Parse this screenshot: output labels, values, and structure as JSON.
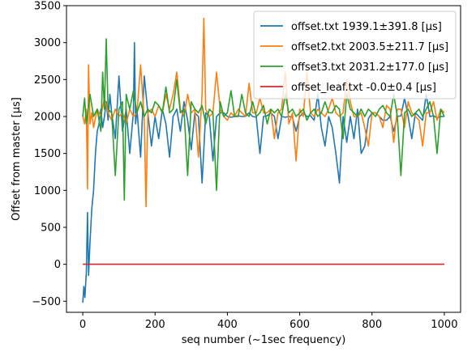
{
  "chart_data": {
    "type": "line",
    "xlabel": "seq number (~1sec frequency)",
    "ylabel": "Offset from master [μs]",
    "xlim": [
      -45,
      1045
    ],
    "ylim": [
      -650,
      3500
    ],
    "xticks": [
      0,
      200,
      400,
      600,
      800,
      1000
    ],
    "yticks": [
      -500,
      0,
      500,
      1000,
      1500,
      2000,
      2500,
      3000,
      3500
    ],
    "xtick_labels": [
      "0",
      "200",
      "400",
      "600",
      "800",
      "1000"
    ],
    "ytick_labels": [
      "−500",
      "0",
      "500",
      "1000",
      "1500",
      "2000",
      "2500",
      "3000",
      "3500"
    ],
    "grid": false,
    "legend_position": "top-right",
    "series": [
      {
        "name": "offset.txt 1939.1±391.8 [μs]",
        "color": "#1f77b4",
        "x": [
          0,
          3,
          6,
          10,
          13,
          16,
          20,
          25,
          30,
          35,
          40,
          45,
          50,
          55,
          60,
          65,
          70,
          75,
          80,
          90,
          100,
          110,
          120,
          130,
          140,
          143,
          146,
          150,
          160,
          170,
          180,
          190,
          200,
          210,
          220,
          230,
          240,
          250,
          260,
          270,
          280,
          290,
          300,
          310,
          320,
          330,
          340,
          350,
          360,
          370,
          380,
          390,
          400,
          410,
          420,
          430,
          440,
          450,
          460,
          470,
          480,
          490,
          500,
          510,
          520,
          530,
          540,
          550,
          560,
          570,
          580,
          590,
          595,
          600,
          610,
          620,
          630,
          640,
          650,
          660,
          670,
          680,
          690,
          700,
          710,
          720,
          730,
          740,
          750,
          760,
          770,
          780,
          790,
          800,
          810,
          820,
          830,
          840,
          850,
          860,
          870,
          880,
          890,
          900,
          910,
          920,
          930,
          940,
          950,
          960,
          970,
          980,
          990,
          1000
        ],
        "y": [
          -520,
          -300,
          -450,
          -100,
          700,
          -150,
          300,
          750,
          1000,
          1500,
          1800,
          1900,
          2100,
          1850,
          2000,
          2200,
          1950,
          2300,
          2050,
          1700,
          2550,
          1800,
          2100,
          1500,
          2050,
          3000,
          1900,
          2100,
          1450,
          2550,
          2050,
          1600,
          2000,
          1700,
          2100,
          1900,
          1450,
          2000,
          2100,
          1800,
          2200,
          1950,
          1550,
          2050,
          2000,
          1100,
          2050,
          2000,
          1400,
          2000,
          2050,
          2050,
          2000,
          1990,
          2000,
          2010,
          2000,
          2000,
          2050,
          2000,
          1990,
          1500,
          2000,
          2010,
          2050,
          2000,
          1700,
          2000,
          1990,
          2000,
          1990,
          1800,
          1900,
          2000,
          2050,
          2000,
          2010,
          1950,
          2300,
          1850,
          1600,
          2000,
          1850,
          1500,
          1100,
          2000,
          1650,
          2000,
          1700,
          2100,
          1500,
          1600,
          1970,
          2050,
          2050,
          2000,
          1950,
          1950,
          2000,
          1800,
          2000,
          2010,
          2250,
          2000,
          1700,
          2050,
          2000,
          1950,
          2300,
          2000,
          2010,
          1980,
          2000,
          2000
        ]
      },
      {
        "name": "offset2.txt 2003.5±211.7 [μs]",
        "color": "#ff7f0e",
        "x": [
          0,
          5,
          10,
          13,
          16,
          20,
          25,
          30,
          40,
          50,
          60,
          70,
          80,
          90,
          100,
          110,
          120,
          130,
          140,
          150,
          160,
          170,
          175,
          180,
          190,
          200,
          210,
          220,
          230,
          240,
          250,
          260,
          270,
          280,
          290,
          300,
          310,
          320,
          330,
          335,
          340,
          350,
          360,
          370,
          380,
          390,
          400,
          410,
          420,
          430,
          440,
          450,
          460,
          470,
          480,
          490,
          500,
          510,
          520,
          530,
          540,
          550,
          560,
          570,
          580,
          590,
          600,
          610,
          620,
          630,
          640,
          650,
          660,
          670,
          680,
          690,
          700,
          710,
          720,
          730,
          740,
          750,
          760,
          770,
          780,
          790,
          800,
          810,
          820,
          830,
          840,
          850,
          860,
          870,
          880,
          890,
          900,
          910,
          920,
          930,
          940,
          950,
          960,
          970,
          980,
          990,
          1000
        ],
        "y": [
          2000,
          1900,
          2100,
          1020,
          2700,
          1900,
          2050,
          1850,
          2100,
          2000,
          2250,
          2050,
          1950,
          2100,
          2000,
          2050,
          1900,
          2100,
          2000,
          2050,
          2700,
          1950,
          780,
          2050,
          2100,
          2000,
          2150,
          2050,
          2300,
          2100,
          2300,
          2600,
          2100,
          2000,
          2300,
          2050,
          2100,
          1450,
          2300,
          3330,
          2100,
          2000,
          2050,
          2600,
          2100,
          2000,
          1950,
          2050,
          2000,
          2100,
          2050,
          2000,
          2450,
          2050,
          2050,
          2250,
          2050,
          2050,
          2100,
          1700,
          2050,
          2100,
          2600,
          1900,
          2050,
          1400,
          2100,
          2000,
          2600,
          2050,
          2000,
          2100,
          2050,
          2000,
          2100,
          2250,
          2050,
          2000,
          2050,
          2500,
          2200,
          2000,
          2000,
          2050,
          1850,
          1600,
          2050,
          2050,
          2000,
          1850,
          2150,
          2100,
          1650,
          2100,
          2100,
          1850,
          2200,
          2050,
          2000,
          1950,
          1600,
          2050,
          2050,
          2200,
          1950,
          2100,
          2050
        ]
      },
      {
        "name": "offset3.txt 2031.2±177.0 [μs]",
        "color": "#2ca02c",
        "x": [
          0,
          5,
          10,
          20,
          30,
          40,
          50,
          55,
          60,
          65,
          70,
          80,
          90,
          100,
          110,
          115,
          120,
          130,
          140,
          150,
          160,
          170,
          180,
          190,
          200,
          210,
          220,
          230,
          240,
          250,
          260,
          270,
          280,
          290,
          300,
          310,
          320,
          330,
          340,
          350,
          360,
          370,
          380,
          390,
          400,
          410,
          420,
          430,
          440,
          450,
          460,
          470,
          480,
          490,
          500,
          510,
          520,
          530,
          540,
          550,
          560,
          570,
          580,
          590,
          600,
          610,
          620,
          630,
          640,
          650,
          660,
          670,
          680,
          690,
          700,
          710,
          720,
          730,
          740,
          750,
          760,
          770,
          780,
          790,
          800,
          810,
          820,
          830,
          840,
          850,
          860,
          870,
          880,
          890,
          900,
          910,
          920,
          930,
          940,
          950,
          960,
          970,
          980,
          990,
          1000
        ],
        "y": [
          2000,
          2250,
          1900,
          2300,
          2000,
          2100,
          1800,
          2600,
          2100,
          3050,
          2100,
          2050,
          1200,
          2100,
          2200,
          870,
          2300,
          2100,
          2350,
          2050,
          2200,
          2000,
          2100,
          2050,
          2200,
          2150,
          2050,
          2400,
          2050,
          2100,
          2500,
          2050,
          2100,
          1200,
          2200,
          2100,
          2050,
          2150,
          1900,
          2100,
          2050,
          1000,
          2200,
          2000,
          2050,
          2350,
          2000,
          2000,
          2300,
          2050,
          2000,
          2200,
          2000,
          2050,
          2150,
          1900,
          2100,
          2050,
          2100,
          2000,
          2300,
          2050,
          2100,
          2000,
          2050,
          2100,
          1950,
          2050,
          2100,
          2000,
          2050,
          2200,
          2050,
          2050,
          2150,
          2100,
          1700,
          2300,
          2100,
          2050,
          2000,
          2100,
          2000,
          2100,
          2050,
          2000,
          2100,
          2150,
          2050,
          2000,
          2300,
          2000,
          1200,
          2050,
          2100,
          2000,
          2050,
          2100,
          2000,
          2100,
          2200,
          2000,
          1500,
          2100,
          2000
        ]
      },
      {
        "name": "offset_leaf.txt -0.0±0.4 [μs]",
        "color": "#d62728",
        "x": [
          0,
          1000
        ],
        "y": [
          0,
          0
        ]
      }
    ]
  }
}
